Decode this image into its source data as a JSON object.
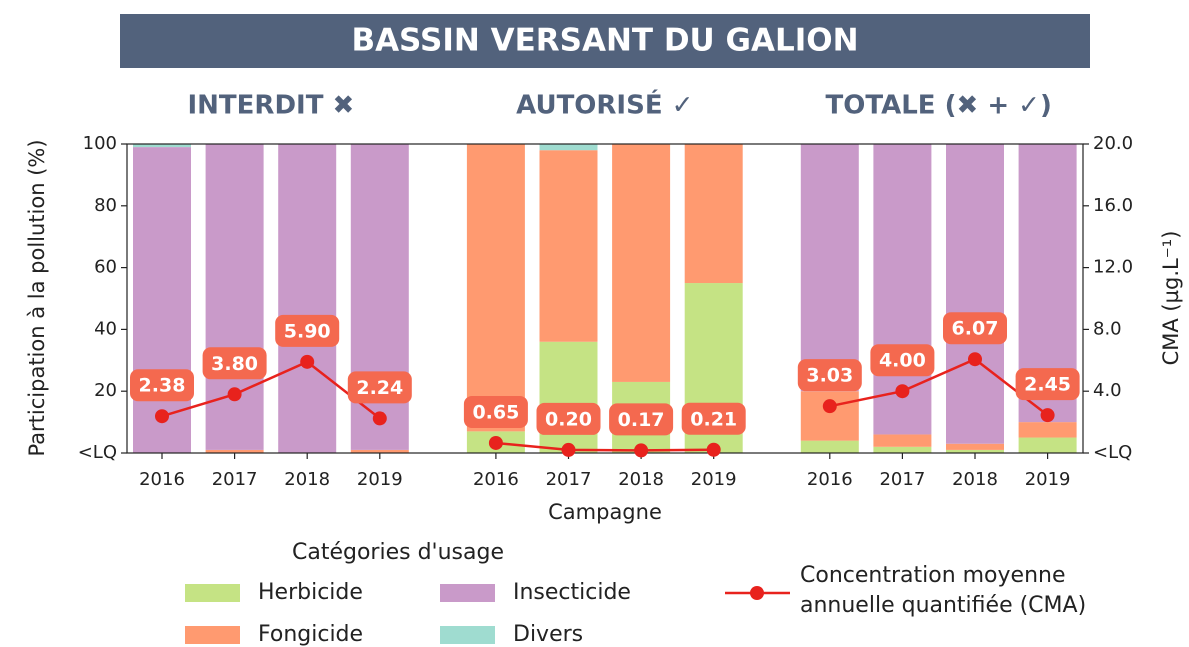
{
  "chart_data": {
    "type": "bar",
    "stacked": true,
    "title": "BASSIN VERSANT DU GALION",
    "groups": [
      {
        "title": "INTERDIT ✖",
        "count": 4
      },
      {
        "title": "AUTORISÉ ✓",
        "count": 4
      },
      {
        "title": "TOTALE (✖ + ✓)",
        "count": 4
      }
    ],
    "categories": [
      "2016",
      "2017",
      "2018",
      "2019",
      "2016",
      "2017",
      "2018",
      "2019",
      "2016",
      "2017",
      "2018",
      "2019"
    ],
    "xlabel": "Campagne",
    "ylabel": "Participation à la pollution (%)",
    "y2label": "CMA (µg.L⁻¹)",
    "ylim": [
      0,
      100
    ],
    "yticks": [
      {
        "value": 0,
        "label": "<LQ"
      },
      20,
      40,
      60,
      80,
      100
    ],
    "y2lim": [
      0,
      20
    ],
    "y2ticks": [
      {
        "value": 0,
        "label": "<LQ"
      },
      {
        "value": 4,
        "label": "4.0"
      },
      {
        "value": 8,
        "label": "8.0"
      },
      {
        "value": 12,
        "label": "12.0"
      },
      {
        "value": 16,
        "label": "16.0"
      },
      {
        "value": 20,
        "label": "20.0"
      }
    ],
    "legend_title": "Catégories d'usage",
    "legend": "bottom",
    "series": [
      {
        "name": "Herbicide",
        "color": "#c5e384",
        "values": [
          0,
          0,
          0,
          0,
          7,
          36,
          23,
          55,
          4,
          2,
          1,
          5
        ]
      },
      {
        "name": "Fongicide",
        "color": "#ff9a70",
        "values": [
          0,
          1,
          0,
          1,
          93,
          62,
          77,
          45,
          16,
          4,
          2,
          5
        ]
      },
      {
        "name": "Insecticide",
        "color": "#c99ac9",
        "values": [
          99,
          99,
          100,
          99,
          0,
          0,
          0,
          0,
          80,
          94,
          97,
          90
        ]
      },
      {
        "name": "Divers",
        "color": "#9fdcd0",
        "values": [
          1,
          0,
          0,
          0,
          0,
          2,
          0,
          0,
          0,
          0,
          0,
          0
        ]
      },
      {
        "name": "Concentration moyenne annuelle quantifiée (CMA)",
        "type": "line",
        "axis": "y2",
        "color": "#e8221d",
        "values": [
          2.38,
          3.8,
          5.9,
          2.24,
          0.65,
          0.2,
          0.17,
          0.21,
          3.03,
          4.0,
          6.07,
          2.45
        ],
        "value_labels": [
          "2.38",
          "3.80",
          "5.90",
          "2.24",
          "0.65",
          "0.20",
          "0.17",
          "0.21",
          "3.03",
          "4.00",
          "6.07",
          "2.45"
        ]
      }
    ]
  }
}
